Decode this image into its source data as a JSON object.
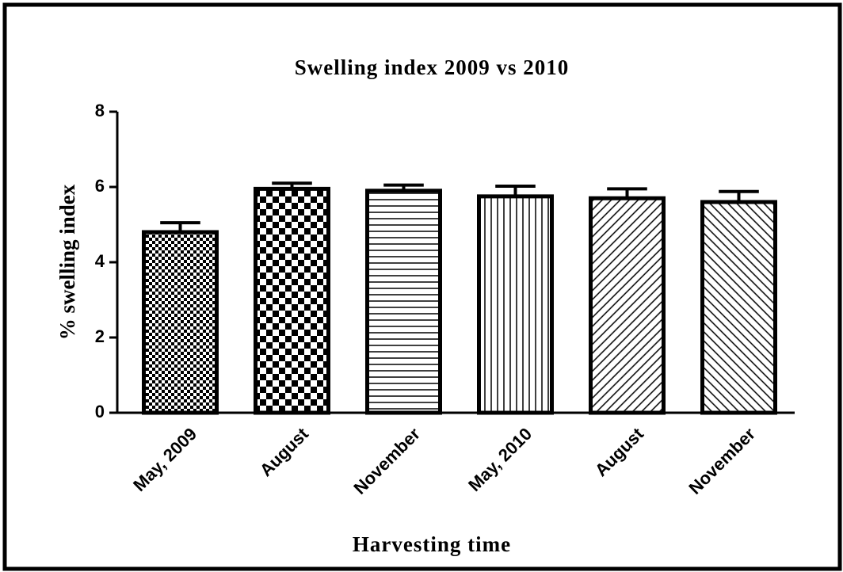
{
  "chart_data": {
    "type": "bar",
    "title": "Swelling index  2009 vs 2010",
    "x_label": "Harvesting time",
    "y_label": "% swelling index",
    "categories": [
      "May, 2009",
      "August",
      "November",
      "May, 2010",
      "August",
      "November"
    ],
    "values": [
      4.8,
      5.95,
      5.9,
      5.75,
      5.7,
      5.6
    ],
    "errors": [
      0.25,
      0.15,
      0.15,
      0.27,
      0.25,
      0.28
    ],
    "patterns": [
      "fine-check",
      "check",
      "horizontal",
      "vertical",
      "diagonal-up",
      "diagonal-down"
    ],
    "color": "#000000",
    "ylim": [
      0,
      8
    ],
    "yticks": [
      0,
      2,
      4,
      6,
      8
    ],
    "grid": false
  }
}
